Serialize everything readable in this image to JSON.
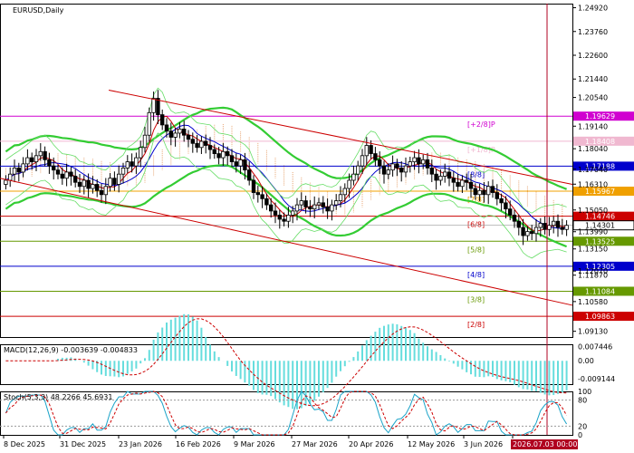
{
  "header": {
    "symbol": "EURUSD,Daily"
  },
  "colors": {
    "up": "#000000",
    "down": "#000000",
    "channel": "#cc0000",
    "ma_red": "#cc0000",
    "ma_blue": "#0000cc",
    "bollinger": "#33cc33",
    "envelope": "#22aa22",
    "ichimoku_cloud": "#e8a878",
    "macd_hist": "#66dddd",
    "macd_signal": "#cc0000",
    "stoch_main": "#1aa3c8",
    "stoch_signal": "#cc0000",
    "vline": "#b00020"
  },
  "price_axis": {
    "ticks": [
      "1.24920",
      "1.23760",
      "1.22600",
      "1.21440",
      "1.20540",
      "1.19140",
      "1.18040",
      "1.17040",
      "1.16310",
      "1.15050",
      "1.13990",
      "1.13150",
      "1.12070",
      "1.11870",
      "1.10580",
      "1.09130"
    ]
  },
  "time_axis": {
    "labels": [
      "8 Dec 2025",
      "31 Dec 2025",
      "23 Jan 2026",
      "16 Feb 2026",
      "9 Mar 2026",
      "27 Mar 2026",
      "20 Apr 2026",
      "12 May 2026",
      "3 Jun 2026",
      "2026.07.03 00:00"
    ]
  },
  "murrey": [
    {
      "label": "[+2/8]P",
      "price": "1.19629",
      "color": "#d000d0"
    },
    {
      "label": "[+1/8]P",
      "price": "1.18408",
      "color": "#f0b8d0"
    },
    {
      "label": "[8/8]",
      "price": "1.17188",
      "color": "#0000cc"
    },
    {
      "label": "[7/8]",
      "price": "1.15967",
      "color": "#f0a000"
    },
    {
      "label": "[6/8]",
      "price": "1.14746",
      "color": "#cc0000"
    },
    {
      "label": "[5/8]",
      "price": "1.13525",
      "color": "#669900"
    },
    {
      "label": "[4/8]",
      "price": "1.12305",
      "color": "#0000cc"
    },
    {
      "label": "[3/8]",
      "price": "1.11084",
      "color": "#669900"
    },
    {
      "label": "[2/8]",
      "price": "1.09863",
      "color": "#cc0000"
    }
  ],
  "current_price": {
    "value": "1.14301"
  },
  "macd": {
    "label": "MACD(12,26,9) -0.003639 -0.004833",
    "ticks": [
      "0.007446",
      "0.00",
      "-0.009144"
    ]
  },
  "stoch": {
    "label": "Stoch(5,3,3) 48.2266 45.6931",
    "ticks": [
      "100",
      "80",
      "20",
      "0"
    ]
  },
  "chart_data": {
    "type": "candlestick",
    "symbol": "EURUSD",
    "timeframe": "Daily",
    "ylim": [
      1.0885,
      1.2512
    ],
    "ohlc_close_series": [
      1.165,
      1.168,
      1.171,
      1.169,
      1.173,
      1.176,
      1.174,
      1.177,
      1.179,
      1.175,
      1.172,
      1.17,
      1.168,
      1.166,
      1.169,
      1.167,
      1.164,
      1.162,
      1.165,
      1.161,
      1.163,
      1.16,
      1.158,
      1.162,
      1.166,
      1.163,
      1.168,
      1.171,
      1.174,
      1.172,
      1.176,
      1.181,
      1.187,
      1.198,
      1.205,
      1.197,
      1.192,
      1.189,
      1.186,
      1.188,
      1.19,
      1.187,
      1.185,
      1.183,
      1.181,
      1.184,
      1.182,
      1.18,
      1.178,
      1.176,
      1.179,
      1.177,
      1.174,
      1.172,
      1.175,
      1.17,
      1.165,
      1.159,
      1.158,
      1.156,
      1.153,
      1.15,
      1.148,
      1.146,
      1.145,
      1.148,
      1.15,
      1.153,
      1.155,
      1.152,
      1.151,
      1.153,
      1.154,
      1.152,
      1.15,
      1.153,
      1.155,
      1.158,
      1.161,
      1.165,
      1.168,
      1.172,
      1.177,
      1.182,
      1.178,
      1.175,
      1.172,
      1.168,
      1.17,
      1.173,
      1.171,
      1.169,
      1.172,
      1.174,
      1.176,
      1.173,
      1.175,
      1.171,
      1.168,
      1.165,
      1.167,
      1.169,
      1.166,
      1.164,
      1.162,
      1.165,
      1.164,
      1.161,
      1.158,
      1.16,
      1.158,
      1.162,
      1.159,
      1.156,
      1.154,
      1.151,
      1.148,
      1.145,
      1.142,
      1.138,
      1.14,
      1.139,
      1.142,
      1.144,
      1.141,
      1.143,
      1.145,
      1.142,
      1.141,
      1.143
    ],
    "channel_upper": [
      [
        0.19,
        1.209
      ],
      [
        1.0,
        1.163
      ]
    ],
    "channel_lower": [
      [
        0.0,
        1.166
      ],
      [
        1.0,
        1.104
      ]
    ],
    "macd_range": [
      -0.012,
      0.0085
    ],
    "stoch_range": [
      0,
      100
    ]
  }
}
